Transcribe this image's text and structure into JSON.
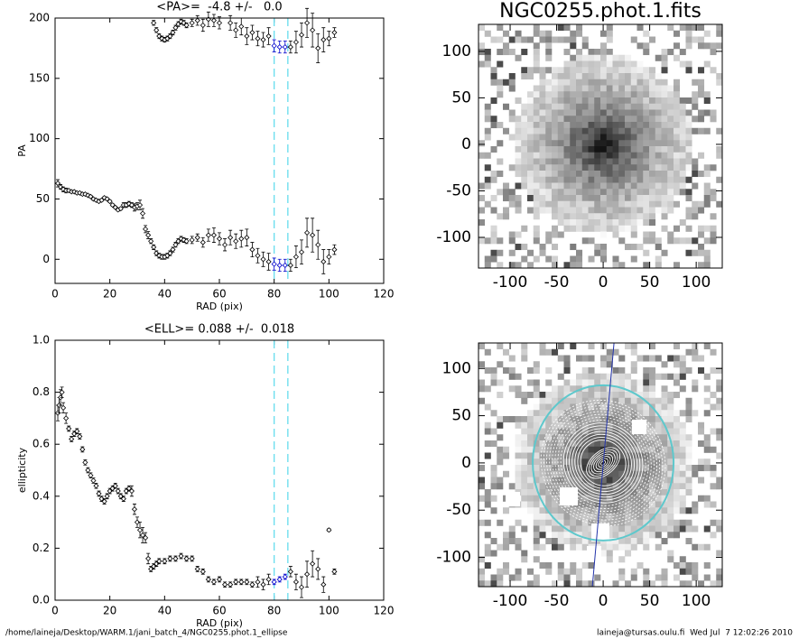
{
  "chart_data": [
    {
      "type": "scatter",
      "title": "<PA>=  -4.8 +/-   0.0",
      "xlabel": "RAD (pix)",
      "ylabel": "PA",
      "xlim": [
        0,
        120
      ],
      "xticks": [
        0,
        20,
        40,
        60,
        80,
        100,
        120
      ],
      "ylim": [
        -20,
        200
      ],
      "yticks": [
        0,
        50,
        100,
        150,
        200
      ],
      "vlines": [
        80,
        85
      ],
      "vline_color": "#66ddee",
      "highlight_color": "#0000cc",
      "series": [
        {
          "color": "#000000",
          "x": [
            1,
            2,
            3,
            4,
            5,
            6,
            7,
            8,
            9,
            10,
            11,
            12,
            13,
            14,
            15,
            16,
            17,
            18,
            19,
            20,
            21,
            22,
            23,
            24,
            25,
            26,
            27,
            28,
            29,
            30,
            31,
            32,
            33,
            34,
            35,
            36,
            37,
            38,
            39,
            40,
            41,
            42,
            43,
            44,
            45,
            46,
            47,
            48,
            50,
            52,
            54,
            56,
            58,
            60,
            62,
            64,
            66,
            68,
            70,
            72,
            74,
            76,
            78,
            80,
            82,
            84,
            86,
            88,
            90,
            92,
            94,
            96,
            98,
            100,
            102
          ],
          "values": [
            63,
            60,
            58,
            57,
            57,
            56,
            56,
            55,
            55,
            54,
            54,
            53,
            52,
            50,
            49,
            48,
            49,
            51,
            50,
            48,
            45,
            43,
            41,
            42,
            45,
            45,
            46,
            45,
            43,
            44,
            45,
            38,
            25,
            20,
            15,
            10,
            5,
            3,
            2,
            2,
            3,
            5,
            8,
            12,
            15,
            17,
            16,
            15,
            16,
            18,
            14,
            20,
            20,
            17,
            12,
            18,
            15,
            17,
            18,
            8,
            3,
            0,
            -2,
            -4,
            -5,
            -5,
            -5,
            2,
            6,
            22,
            20,
            12,
            -2,
            2,
            8
          ],
          "errors": [
            3,
            2,
            2,
            2,
            1,
            1,
            1,
            1,
            1,
            1,
            1,
            1,
            1,
            1,
            1,
            1,
            1,
            1,
            1,
            1,
            1,
            1,
            1,
            1,
            2,
            2,
            2,
            2,
            3,
            3,
            4,
            4,
            3,
            3,
            2,
            2,
            2,
            2,
            2,
            2,
            2,
            2,
            2,
            2,
            2,
            2,
            2,
            2,
            3,
            3,
            4,
            5,
            6,
            5,
            5,
            6,
            6,
            7,
            7,
            6,
            6,
            6,
            7,
            5,
            5,
            5,
            5,
            9,
            10,
            12,
            14,
            12,
            10,
            6,
            4
          ]
        },
        {
          "color": "#000000",
          "x": [
            36,
            37,
            38,
            39,
            40,
            41,
            42,
            43,
            44,
            45,
            46,
            47,
            48,
            50,
            52,
            54,
            56,
            58,
            60,
            64,
            66,
            68,
            70,
            72,
            74,
            76,
            78,
            80,
            82,
            84,
            86,
            88,
            90,
            92,
            94,
            96,
            98,
            100,
            102
          ],
          "values": [
            196,
            190,
            185,
            183,
            182,
            183,
            185,
            188,
            192,
            195,
            197,
            196,
            194,
            196,
            198,
            194,
            199,
            198,
            196,
            196,
            190,
            193,
            185,
            188,
            183,
            182,
            185,
            177,
            176,
            176,
            176,
            180,
            186,
            196,
            190,
            175,
            182,
            183,
            188
          ],
          "errors": [
            2,
            2,
            2,
            2,
            2,
            2,
            2,
            2,
            2,
            2,
            2,
            2,
            2,
            3,
            4,
            5,
            6,
            5,
            5,
            6,
            6,
            7,
            7,
            6,
            6,
            6,
            7,
            5,
            5,
            5,
            5,
            9,
            10,
            12,
            14,
            12,
            10,
            6,
            4
          ]
        }
      ]
    },
    {
      "type": "image",
      "title": "NGC0255.phot.1.fits",
      "xlim": [
        -134,
        128
      ],
      "xticks": [
        -100,
        -50,
        0,
        50,
        100
      ],
      "ylim": [
        -133,
        129
      ],
      "yticks": [
        -100,
        -50,
        0,
        50,
        100
      ],
      "contours": false
    },
    {
      "type": "scatter",
      "title": "<ELL>= 0.088 +/-  0.018",
      "xlabel": "RAD (pix)",
      "ylabel": "ellipticity",
      "xlim": [
        0,
        120
      ],
      "xticks": [
        0,
        20,
        40,
        60,
        80,
        100,
        120
      ],
      "ylim": [
        0,
        1
      ],
      "yticks": [
        {
          "value": 0,
          "label": "0.0"
        },
        0.2,
        0.4,
        0.6,
        0.8,
        {
          "value": 1,
          "label": "1.0"
        }
      ],
      "vlines": [
        80,
        85
      ],
      "vline_color": "#66ddee",
      "highlight_color": "#0000cc",
      "series": [
        {
          "color": "#000000",
          "x": [
            1,
            1.5,
            2,
            2.5,
            3,
            4,
            5,
            6,
            7,
            8,
            9,
            10,
            11,
            12,
            13,
            14,
            15,
            16,
            17,
            18,
            19,
            20,
            21,
            22,
            23,
            24,
            25,
            26,
            27,
            28,
            29,
            30,
            31,
            32,
            33,
            34,
            35,
            36,
            37,
            38,
            40,
            42,
            44,
            46,
            48,
            50,
            52,
            54,
            56,
            58,
            60,
            62,
            64,
            66,
            68,
            70,
            72,
            74,
            76,
            78,
            80,
            82,
            84,
            86,
            88,
            90,
            92,
            94,
            96,
            98,
            100,
            102
          ],
          "values": [
            0.72,
            0.75,
            0.78,
            0.8,
            0.74,
            0.7,
            0.66,
            0.62,
            0.64,
            0.65,
            0.63,
            0.58,
            0.53,
            0.5,
            0.48,
            0.46,
            0.44,
            0.41,
            0.39,
            0.38,
            0.4,
            0.42,
            0.43,
            0.44,
            0.42,
            0.4,
            0.39,
            0.42,
            0.43,
            0.42,
            0.35,
            0.3,
            0.27,
            0.25,
            0.24,
            0.16,
            0.12,
            0.13,
            0.14,
            0.15,
            0.15,
            0.16,
            0.16,
            0.17,
            0.16,
            0.16,
            0.12,
            0.11,
            0.08,
            0.07,
            0.08,
            0.06,
            0.06,
            0.07,
            0.07,
            0.07,
            0.06,
            0.07,
            0.06,
            0.08,
            0.07,
            0.08,
            0.09,
            0.11,
            0.07,
            0.05,
            0.1,
            0.14,
            0.12,
            0.06,
            0.27,
            0.11
          ],
          "errors": [
            0.03,
            0.03,
            0.03,
            0.02,
            0.02,
            0.02,
            0.01,
            0.01,
            0.01,
            0.01,
            0.01,
            0.01,
            0.01,
            0.01,
            0.01,
            0.01,
            0.01,
            0.01,
            0.01,
            0.01,
            0.01,
            0.01,
            0.01,
            0.01,
            0.01,
            0.01,
            0.01,
            0.01,
            0.01,
            0.02,
            0.02,
            0.02,
            0.03,
            0.03,
            0.02,
            0.02,
            0.01,
            0.01,
            0.01,
            0.01,
            0.01,
            0.01,
            0.01,
            0.01,
            0.01,
            0.01,
            0.01,
            0.01,
            0.01,
            0.01,
            0.01,
            0.01,
            0.01,
            0.01,
            0.01,
            0.01,
            0.01,
            0.02,
            0.02,
            0.02,
            0.01,
            0.01,
            0.01,
            0.02,
            0.03,
            0.04,
            0.05,
            0.05,
            0.04,
            0.03,
            0.005,
            0.01
          ]
        }
      ]
    },
    {
      "type": "image",
      "xlim": [
        -134,
        128
      ],
      "xticks": [
        -100,
        -50,
        0,
        50,
        100
      ],
      "ylim": [
        -131,
        127
      ],
      "yticks": [
        -100,
        -50,
        0,
        50,
        100
      ],
      "contours": true
    }
  ],
  "footer": {
    "left": "/home/laineja/Desktop/WARM.1/jani_batch_4/NGC0255.phot.1_ellipse",
    "right": "laineja@tursas.oulu.fi  Wed Jul  7 12:02:26 2010"
  }
}
